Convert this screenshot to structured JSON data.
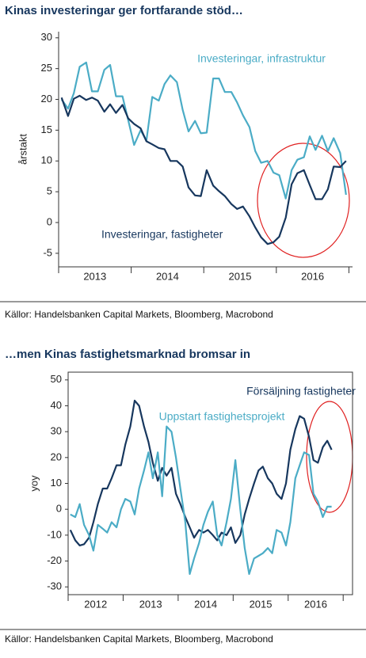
{
  "chart_data": [
    {
      "type": "line",
      "title": "Kinas investeringar ger fortfarande stöd…",
      "ylabel": "årstakt",
      "source": "Källor: Handelsbanken Capital Markets,  Bloomberg, Macrobond",
      "xlim": [
        2013.0,
        2017.05
      ],
      "ylim": [
        -7.2,
        31
      ],
      "yticks": [
        -5,
        0,
        5,
        10,
        15,
        20,
        25,
        30
      ],
      "xticks": [
        {
          "value": 2013.5,
          "label": "2013"
        },
        {
          "value": 2014.5,
          "label": "2014"
        },
        {
          "value": 2015.5,
          "label": "2015"
        },
        {
          "value": 2016.5,
          "label": "2016"
        }
      ],
      "x": [
        2013.04,
        2013.13,
        2013.21,
        2013.29,
        2013.38,
        2013.46,
        2013.54,
        2013.63,
        2013.71,
        2013.79,
        2013.88,
        2013.96,
        2014.04,
        2014.13,
        2014.21,
        2014.29,
        2014.38,
        2014.46,
        2014.54,
        2014.63,
        2014.71,
        2014.79,
        2014.88,
        2014.96,
        2015.04,
        2015.13,
        2015.21,
        2015.29,
        2015.38,
        2015.46,
        2015.54,
        2015.63,
        2015.71,
        2015.79,
        2015.88,
        2015.96,
        2016.04,
        2016.13,
        2016.21,
        2016.29,
        2016.38,
        2016.46,
        2016.54,
        2016.63,
        2016.71,
        2016.79,
        2016.88,
        2016.96
      ],
      "series": [
        {
          "name": "Investeringar, infrastruktur",
          "color": "#4bacc6",
          "values": [
            20,
            18.5,
            21,
            25.3,
            26,
            21.3,
            21.3,
            24.8,
            25.6,
            20.5,
            20.5,
            16.6,
            12.6,
            15,
            13.3,
            20.4,
            19.8,
            22.5,
            23.9,
            22.8,
            18.3,
            14.8,
            16.5,
            14.5,
            14.6,
            23.4,
            23.4,
            21.2,
            21.2,
            19.5,
            17.4,
            15.5,
            11.6,
            9.7,
            10,
            8.1,
            7.7,
            3.9,
            8.5,
            10.2,
            10.6,
            14,
            11.8,
            14.1,
            11.6,
            13.7,
            11.3,
            4.5
          ]
        },
        {
          "name": "Investeringar, fastigheter",
          "color": "#17375e",
          "values": [
            20.3,
            17.3,
            20.1,
            20.6,
            19.9,
            20.3,
            19.8,
            18,
            19.2,
            17.8,
            19.1,
            16.9,
            16,
            15.3,
            13.2,
            12.7,
            12.1,
            11.9,
            10,
            10,
            9.1,
            5.7,
            4.4,
            4.3,
            8.5,
            6,
            5.1,
            4.3,
            3,
            2.2,
            2.6,
            1,
            -0.8,
            -2.4,
            -3.5,
            -3.2,
            -2.3,
            0.8,
            6.2,
            8,
            8.5,
            6.1,
            3.8,
            3.8,
            5.4,
            9.1,
            9,
            10
          ]
        }
      ]
    },
    {
      "type": "line",
      "title": "…men Kinas fastighetsmarknad bromsar in",
      "ylabel": "yoy",
      "source": "Källor: Handelsbanken Capital Markets, Bloomberg, Macrobond",
      "xlim": [
        2012.0,
        2017.17
      ],
      "ylim": [
        -33,
        53
      ],
      "yticks": [
        -30,
        -20,
        -10,
        0,
        10,
        20,
        30,
        40,
        50
      ],
      "xticks": [
        {
          "value": 2012.5,
          "label": "2012"
        },
        {
          "value": 2013.5,
          "label": "2013"
        },
        {
          "value": 2014.5,
          "label": "2014"
        },
        {
          "value": 2015.5,
          "label": "2015"
        },
        {
          "value": 2016.5,
          "label": "2016"
        }
      ],
      "x": [
        2012.04,
        2012.13,
        2012.21,
        2012.29,
        2012.38,
        2012.46,
        2012.54,
        2012.63,
        2012.71,
        2012.79,
        2012.88,
        2012.96,
        2013.04,
        2013.13,
        2013.21,
        2013.29,
        2013.38,
        2013.46,
        2013.54,
        2013.63,
        2013.71,
        2013.79,
        2013.88,
        2013.96,
        2014.04,
        2014.13,
        2014.21,
        2014.29,
        2014.38,
        2014.46,
        2014.54,
        2014.63,
        2014.71,
        2014.79,
        2014.88,
        2014.96,
        2015.04,
        2015.13,
        2015.21,
        2015.29,
        2015.38,
        2015.46,
        2015.54,
        2015.63,
        2015.71,
        2015.79,
        2015.88,
        2015.96,
        2016.04,
        2016.13,
        2016.21,
        2016.29,
        2016.38,
        2016.46,
        2016.54,
        2016.63,
        2016.71,
        2016.79
      ],
      "series": [
        {
          "name": "Försäljning fastigheter",
          "color": "#17375e",
          "values": [
            -8,
            -12,
            -14,
            -13.5,
            -11,
            -5,
            2,
            8,
            8,
            12,
            17,
            17,
            25,
            32,
            42,
            40,
            32,
            26,
            18,
            11,
            16,
            13,
            16,
            6,
            2,
            -3,
            -7,
            -11,
            -8,
            -9,
            -8,
            -10,
            -12,
            -9,
            -10,
            -7,
            -13,
            -10,
            -2,
            4,
            10,
            15,
            16.5,
            12,
            10,
            6,
            4,
            10,
            23,
            31,
            36,
            35,
            28,
            19,
            18,
            24,
            26.5,
            23
          ]
        },
        {
          "name": "Uppstart fastighetsprojekt",
          "color": "#4bacc6",
          "values": [
            -2,
            -3,
            2,
            -6,
            -10,
            -16,
            -6,
            -7.5,
            -9,
            -5,
            -7,
            0,
            4,
            3,
            -2,
            8,
            15,
            22,
            12,
            22,
            5,
            32,
            30,
            20,
            8,
            -5,
            -25,
            -19,
            -13,
            -6,
            -1,
            3,
            -10,
            -14,
            -5,
            4,
            19,
            0,
            -15,
            -25,
            -19,
            -18,
            -17,
            -15,
            -17,
            -8,
            -9,
            -14,
            -5,
            12,
            17,
            22,
            21,
            6,
            3,
            -3,
            1,
            1
          ]
        }
      ]
    }
  ]
}
